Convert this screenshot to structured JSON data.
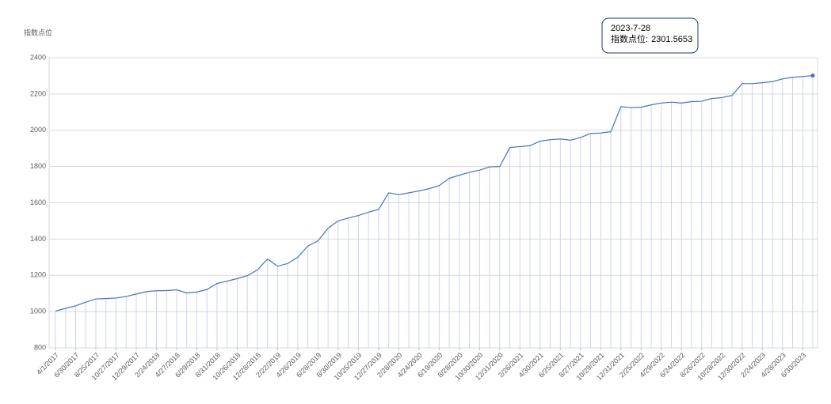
{
  "chart_data": {
    "type": "line",
    "y_label": "指数点位",
    "categories": [
      "4/1/2017",
      null,
      "6/30/2017",
      null,
      "8/25/2017",
      null,
      "10/27/2017",
      null,
      "12/29/2017",
      null,
      "2/24/2018",
      null,
      "4/27/2018",
      null,
      "6/29/2018",
      null,
      "8/31/2018",
      null,
      "10/26/2018",
      null,
      "12/28/2018",
      null,
      "2/22/2019",
      null,
      "4/26/2019",
      null,
      "6/28/2019",
      null,
      "8/30/2019",
      null,
      "10/25/2019",
      null,
      "12/27/2019",
      null,
      "2/28/2020",
      null,
      "4/24/2020",
      null,
      "6/19/2020",
      null,
      "8/28/2020",
      null,
      "10/30/2020",
      null,
      "12/31/2020",
      null,
      "2/26/2021",
      null,
      "4/30/2021",
      null,
      "6/25/2021",
      null,
      "8/27/2021",
      null,
      "10/29/2021",
      null,
      "12/31/2021",
      null,
      "2/25/2022",
      null,
      "4/29/2022",
      null,
      "6/24/2022",
      null,
      "8/26/2022",
      null,
      "10/28/2022",
      null,
      "12/30/2022",
      null,
      "2/24/2023",
      null,
      "4/28/2023",
      null,
      "6/30/2023",
      null
    ],
    "values": [
      1003,
      1018,
      1032,
      1052,
      1070,
      1072,
      1075,
      1083,
      1097,
      1110,
      1115,
      1116,
      1120,
      1103,
      1108,
      1122,
      1155,
      1168,
      1182,
      1198,
      1230,
      1290,
      1250,
      1265,
      1300,
      1362,
      1390,
      1460,
      1500,
      1516,
      1530,
      1548,
      1563,
      1655,
      1645,
      1655,
      1665,
      1678,
      1695,
      1735,
      1752,
      1768,
      1780,
      1798,
      1800,
      1905,
      1910,
      1915,
      1940,
      1948,
      1952,
      1945,
      1960,
      1982,
      1985,
      1992,
      2130,
      2125,
      2127,
      2140,
      2150,
      2155,
      2150,
      2158,
      2160,
      2175,
      2180,
      2192,
      2257,
      2257,
      2262,
      2268,
      2283,
      2292,
      2296,
      2301.5653
    ],
    "color": "#4472c4",
    "ylim": [
      800,
      2400
    ],
    "yticks": [
      800,
      1000,
      1200,
      1400,
      1600,
      1800,
      2000,
      2200,
      2400
    ],
    "grid": true,
    "tooltip": {
      "x": "2023-7-28",
      "label": "指数点位:"
    }
  }
}
